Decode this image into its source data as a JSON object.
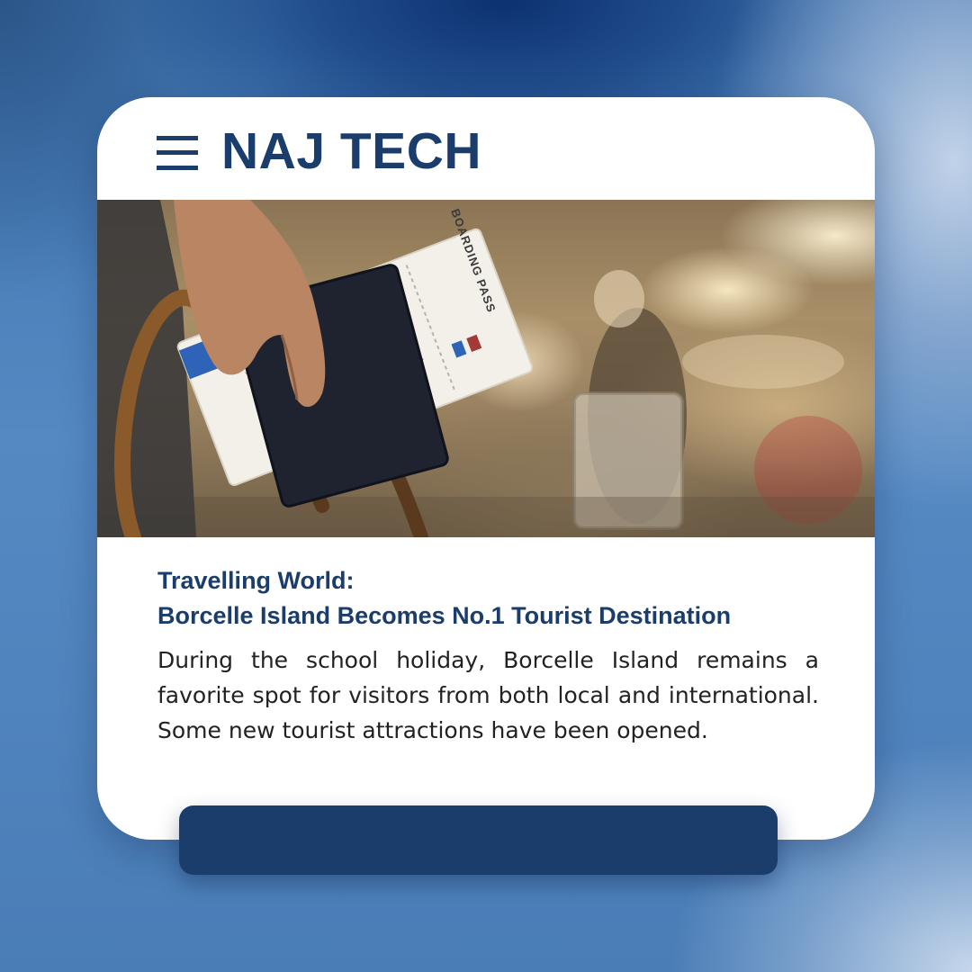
{
  "header": {
    "brand": "NAJ TECH",
    "menu_icon": "hamburger-menu-icon"
  },
  "photo": {
    "pass_label": "BOARDING PASS"
  },
  "article": {
    "kicker": "Travelling World:",
    "headline": "Borcelle Island Becomes No.1 Tourist Destination",
    "body": "During the school holiday, Borcelle Island remains a favorite spot for visitors from both local and international. Some new tourist attractions have been opened."
  },
  "colors": {
    "brand": "#1b3d6b",
    "card": "#ffffff",
    "body_text": "#222222"
  }
}
